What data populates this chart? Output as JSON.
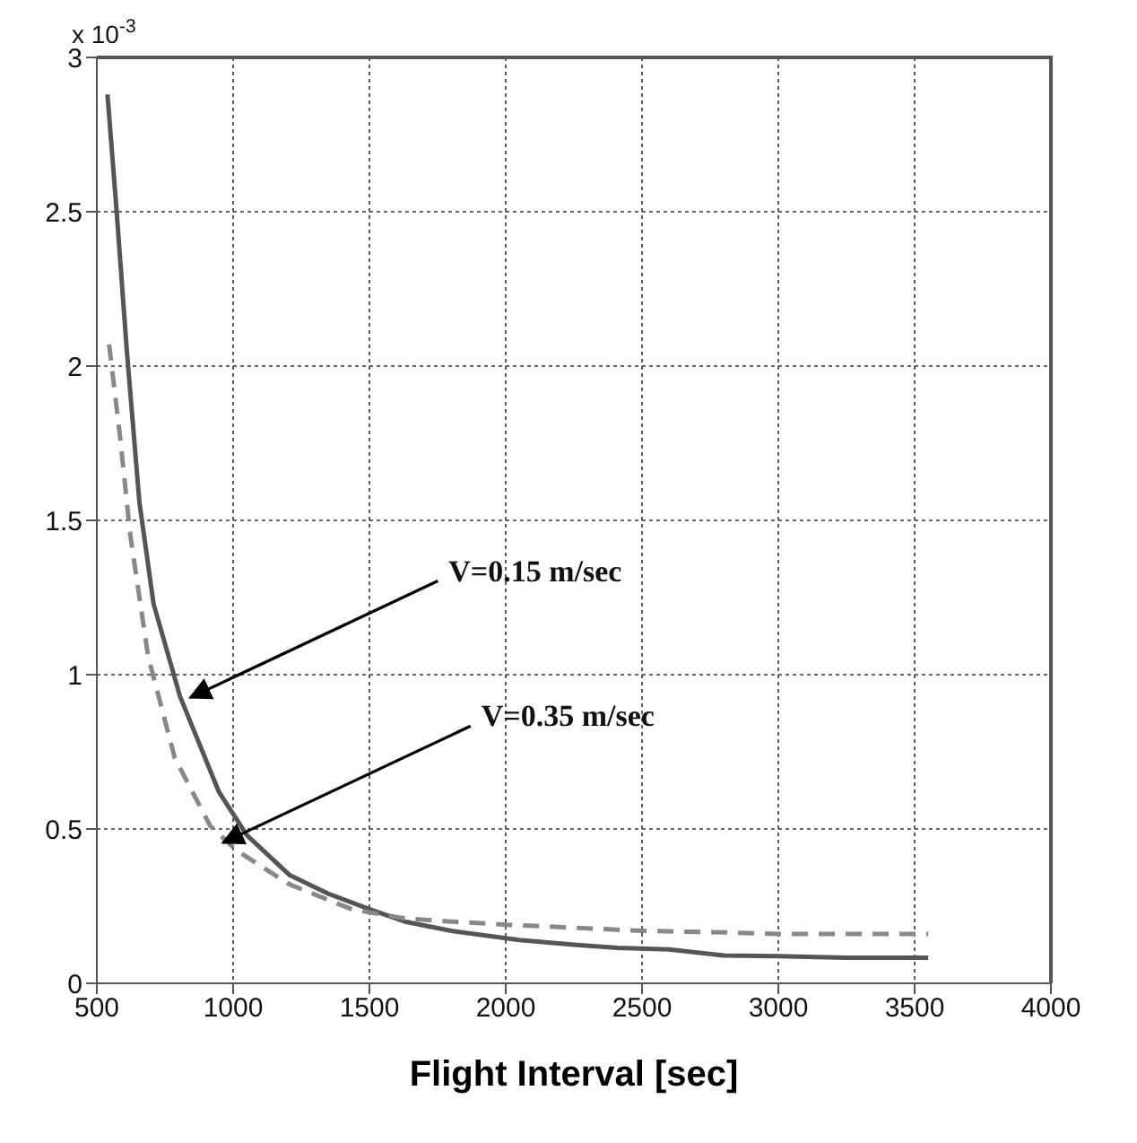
{
  "chart_data": {
    "type": "line",
    "xlabel": "Flight Interval [sec]",
    "xlim": [
      500,
      4000
    ],
    "xticks": [
      500,
      1000,
      1500,
      2000,
      2500,
      3000,
      3500,
      4000
    ],
    "ylim": [
      0,
      3
    ],
    "yticks": [
      0,
      0.5,
      1,
      1.5,
      2,
      2.5,
      3
    ],
    "grid": true,
    "marker": "none",
    "series": [
      {
        "color": "#555555",
        "line_style": "solid",
        "x": [
          539,
          571,
          610,
          656,
          708,
          805,
          948,
          1050,
          1208,
          1350,
          1500,
          1630,
          1800,
          2050,
          2250,
          2410,
          2600,
          2800,
          3000,
          3250,
          3550
        ],
        "values": [
          2.88,
          2.52,
          2.05,
          1.56,
          1.23,
          0.93,
          0.62,
          0.48,
          0.35,
          0.29,
          0.24,
          0.2,
          0.17,
          0.14,
          0.125,
          0.115,
          0.11,
          0.09,
          0.088,
          0.083,
          0.083
        ]
      },
      {
        "color": "#888888",
        "line_style": "dashed",
        "x": [
          545,
          584,
          623,
          688,
          786,
          916,
          1013,
          1208,
          1435,
          1630,
          1800,
          2000,
          2250,
          2500,
          2800,
          3000,
          3250,
          3550
        ],
        "values": [
          2.07,
          1.78,
          1.45,
          1.06,
          0.73,
          0.51,
          0.43,
          0.32,
          0.24,
          0.21,
          0.2,
          0.19,
          0.18,
          0.17,
          0.165,
          0.16,
          0.16,
          0.16
        ]
      }
    ],
    "annotations": [
      "x 10$^{-3}$",
      {
        "text": "V=0.15 m/sec",
        "x": 830,
        "y": 0.92
      },
      {
        "text": "V=0.35 m/sec",
        "x": 950,
        "y": 0.45
      }
    ]
  }
}
